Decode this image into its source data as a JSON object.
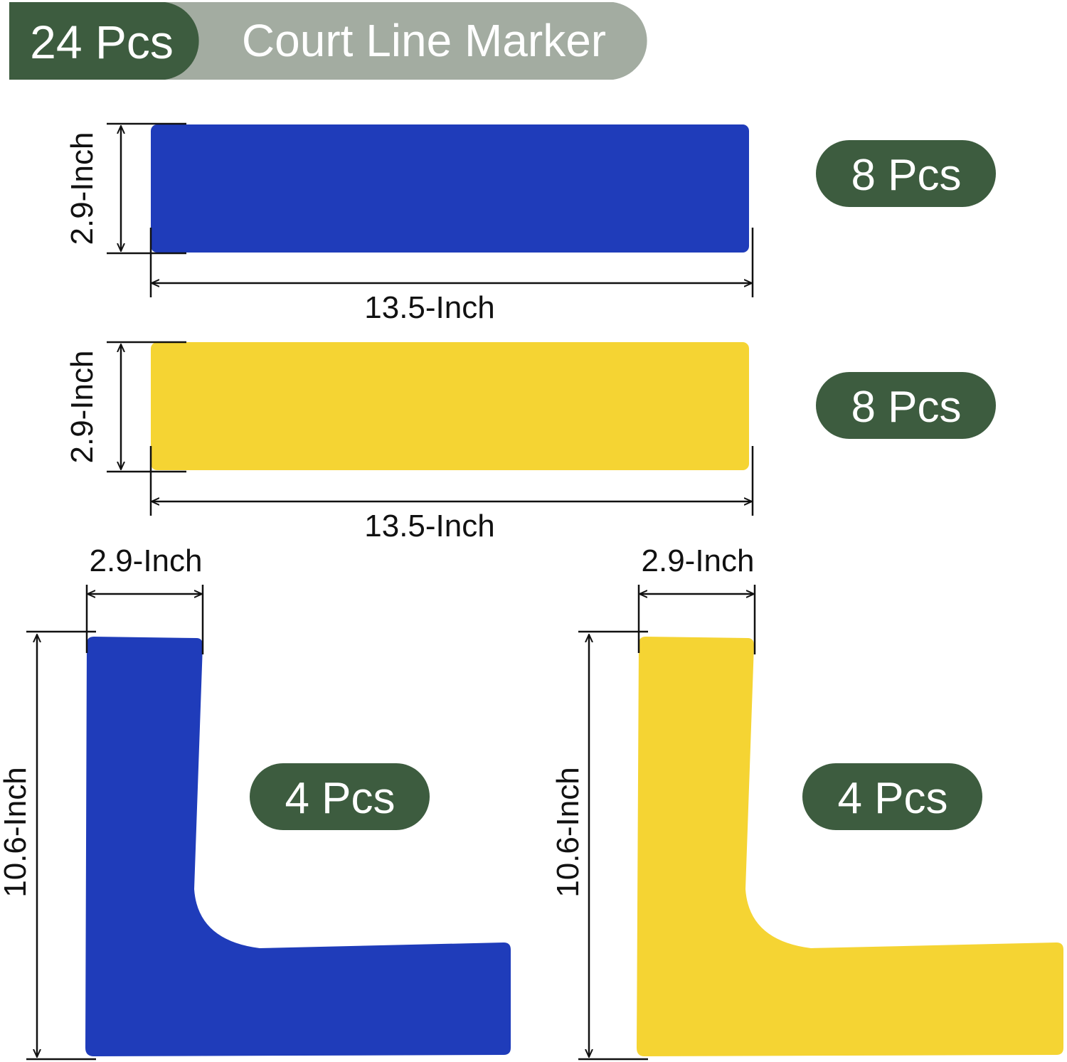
{
  "header": {
    "count": "24 Pcs",
    "title": "Court Line Marker"
  },
  "colors": {
    "dark_green": "#3d5c3f",
    "gray_green": "#a3aca1",
    "blue": "#1f3cba",
    "yellow": "#f5d433"
  },
  "items": [
    {
      "color": "blue",
      "shape": "strip",
      "height": "2.9-Inch",
      "width": "13.5-Inch",
      "quantity": "8 Pcs"
    },
    {
      "color": "yellow",
      "shape": "strip",
      "height": "2.9-Inch",
      "width": "13.5-Inch",
      "quantity": "8 Pcs"
    },
    {
      "color": "blue",
      "shape": "L-corner",
      "arm_width": "2.9-Inch",
      "height": "10.6-Inch",
      "quantity": "4 Pcs"
    },
    {
      "color": "yellow",
      "shape": "L-corner",
      "arm_width": "2.9-Inch",
      "height": "10.6-Inch",
      "quantity": "4 Pcs"
    }
  ]
}
